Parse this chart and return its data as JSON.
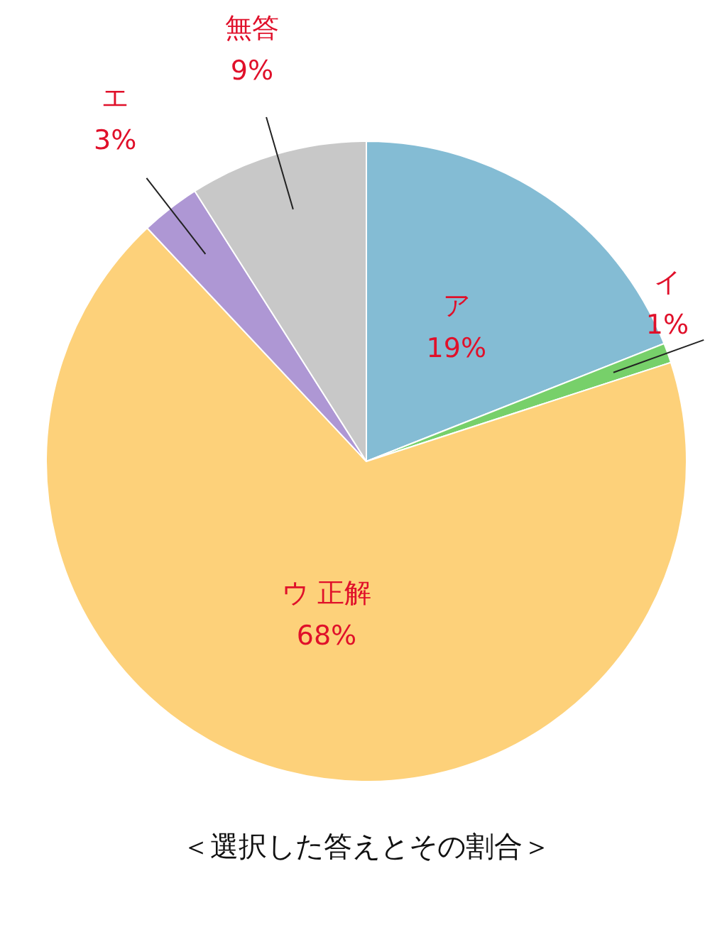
{
  "chart_data": {
    "type": "pie",
    "title": "＜選択した答えとその割合＞",
    "categories": [
      "ア",
      "イ",
      "ウ 正解",
      "エ",
      "無答"
    ],
    "values": [
      19,
      1,
      68,
      3,
      9
    ],
    "value_labels": [
      "19%",
      "1%",
      "68%",
      "3%",
      "9%"
    ],
    "colors": [
      "#84bcd4",
      "#77d06a",
      "#fdd17a",
      "#ae97d4",
      "#c8c8c8"
    ],
    "legend": false
  }
}
